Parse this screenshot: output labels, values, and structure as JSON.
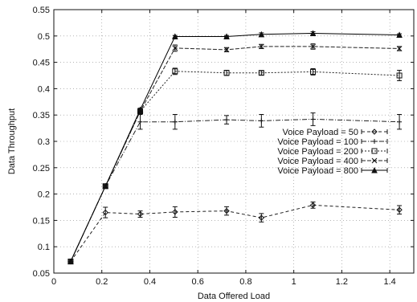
{
  "chart_data": {
    "type": "line",
    "xlabel": "Data Offered Load",
    "ylabel": "Data Throughput",
    "xlim": [
      0,
      1.5
    ],
    "ylim": [
      0.05,
      0.55
    ],
    "xticks": [
      0,
      0.2,
      0.4,
      0.6,
      0.8,
      1,
      1.2,
      1.4
    ],
    "xtick_labels": [
      "0",
      "0.2",
      "0.4",
      "0.6",
      "0.8",
      "1",
      "1.2",
      "1.4"
    ],
    "yticks": [
      0.05,
      0.1,
      0.15,
      0.2,
      0.25,
      0.3,
      0.35,
      0.4,
      0.45,
      0.5,
      0.55
    ],
    "ytick_labels": [
      "0.05",
      "0.1",
      "0.15",
      "0.2",
      "0.25",
      "0.3",
      "0.35",
      "0.4",
      "0.45",
      "0.5",
      "0.55"
    ],
    "grid": true,
    "legend_position": "center-right",
    "x": [
      0.07,
      0.215,
      0.36,
      0.505,
      0.72,
      0.865,
      1.08,
      1.44
    ],
    "series": [
      {
        "name": "Voice Payload = 50",
        "marker": "diamond",
        "dash": "4,3",
        "color": "#222222",
        "values": [
          0.072,
          0.165,
          0.162,
          0.166,
          0.168,
          0.155,
          0.179,
          0.17
        ],
        "errors": [
          0,
          0.01,
          0.006,
          0.01,
          0.008,
          0.008,
          0.006,
          0.008
        ]
      },
      {
        "name": "Voice Payload = 100",
        "marker": "plus",
        "dash": "6,2,1,2",
        "color": "#222222",
        "values": [
          0.072,
          0.215,
          0.337,
          0.337,
          0.341,
          0.339,
          0.342,
          0.337
        ],
        "errors": [
          0,
          0.003,
          0.014,
          0.014,
          0.008,
          0.012,
          0.012,
          0.014
        ]
      },
      {
        "name": "Voice Payload = 200",
        "marker": "square",
        "dash": "2,2",
        "color": "#222222",
        "values": [
          0.072,
          0.215,
          0.357,
          0.433,
          0.43,
          0.43,
          0.432,
          0.425
        ],
        "errors": [
          0,
          0.002,
          0.004,
          0.006,
          0.005,
          0.004,
          0.006,
          0.01
        ]
      },
      {
        "name": "Voice Payload = 400",
        "marker": "x",
        "dash": "5,2",
        "color": "#222222",
        "values": [
          0.072,
          0.215,
          0.357,
          0.477,
          0.474,
          0.48,
          0.48,
          0.476
        ],
        "errors": [
          0,
          0.002,
          0.003,
          0.006,
          0.004,
          0.004,
          0.005,
          0.004
        ]
      },
      {
        "name": "Voice Payload = 800",
        "marker": "triangle",
        "dash": "",
        "color": "#000000",
        "values": [
          0.072,
          0.215,
          0.36,
          0.499,
          0.499,
          0.503,
          0.505,
          0.502
        ],
        "errors": [
          0,
          0.002,
          0.003,
          0.002,
          0.002,
          0.003,
          0.003,
          0.002
        ]
      }
    ]
  }
}
